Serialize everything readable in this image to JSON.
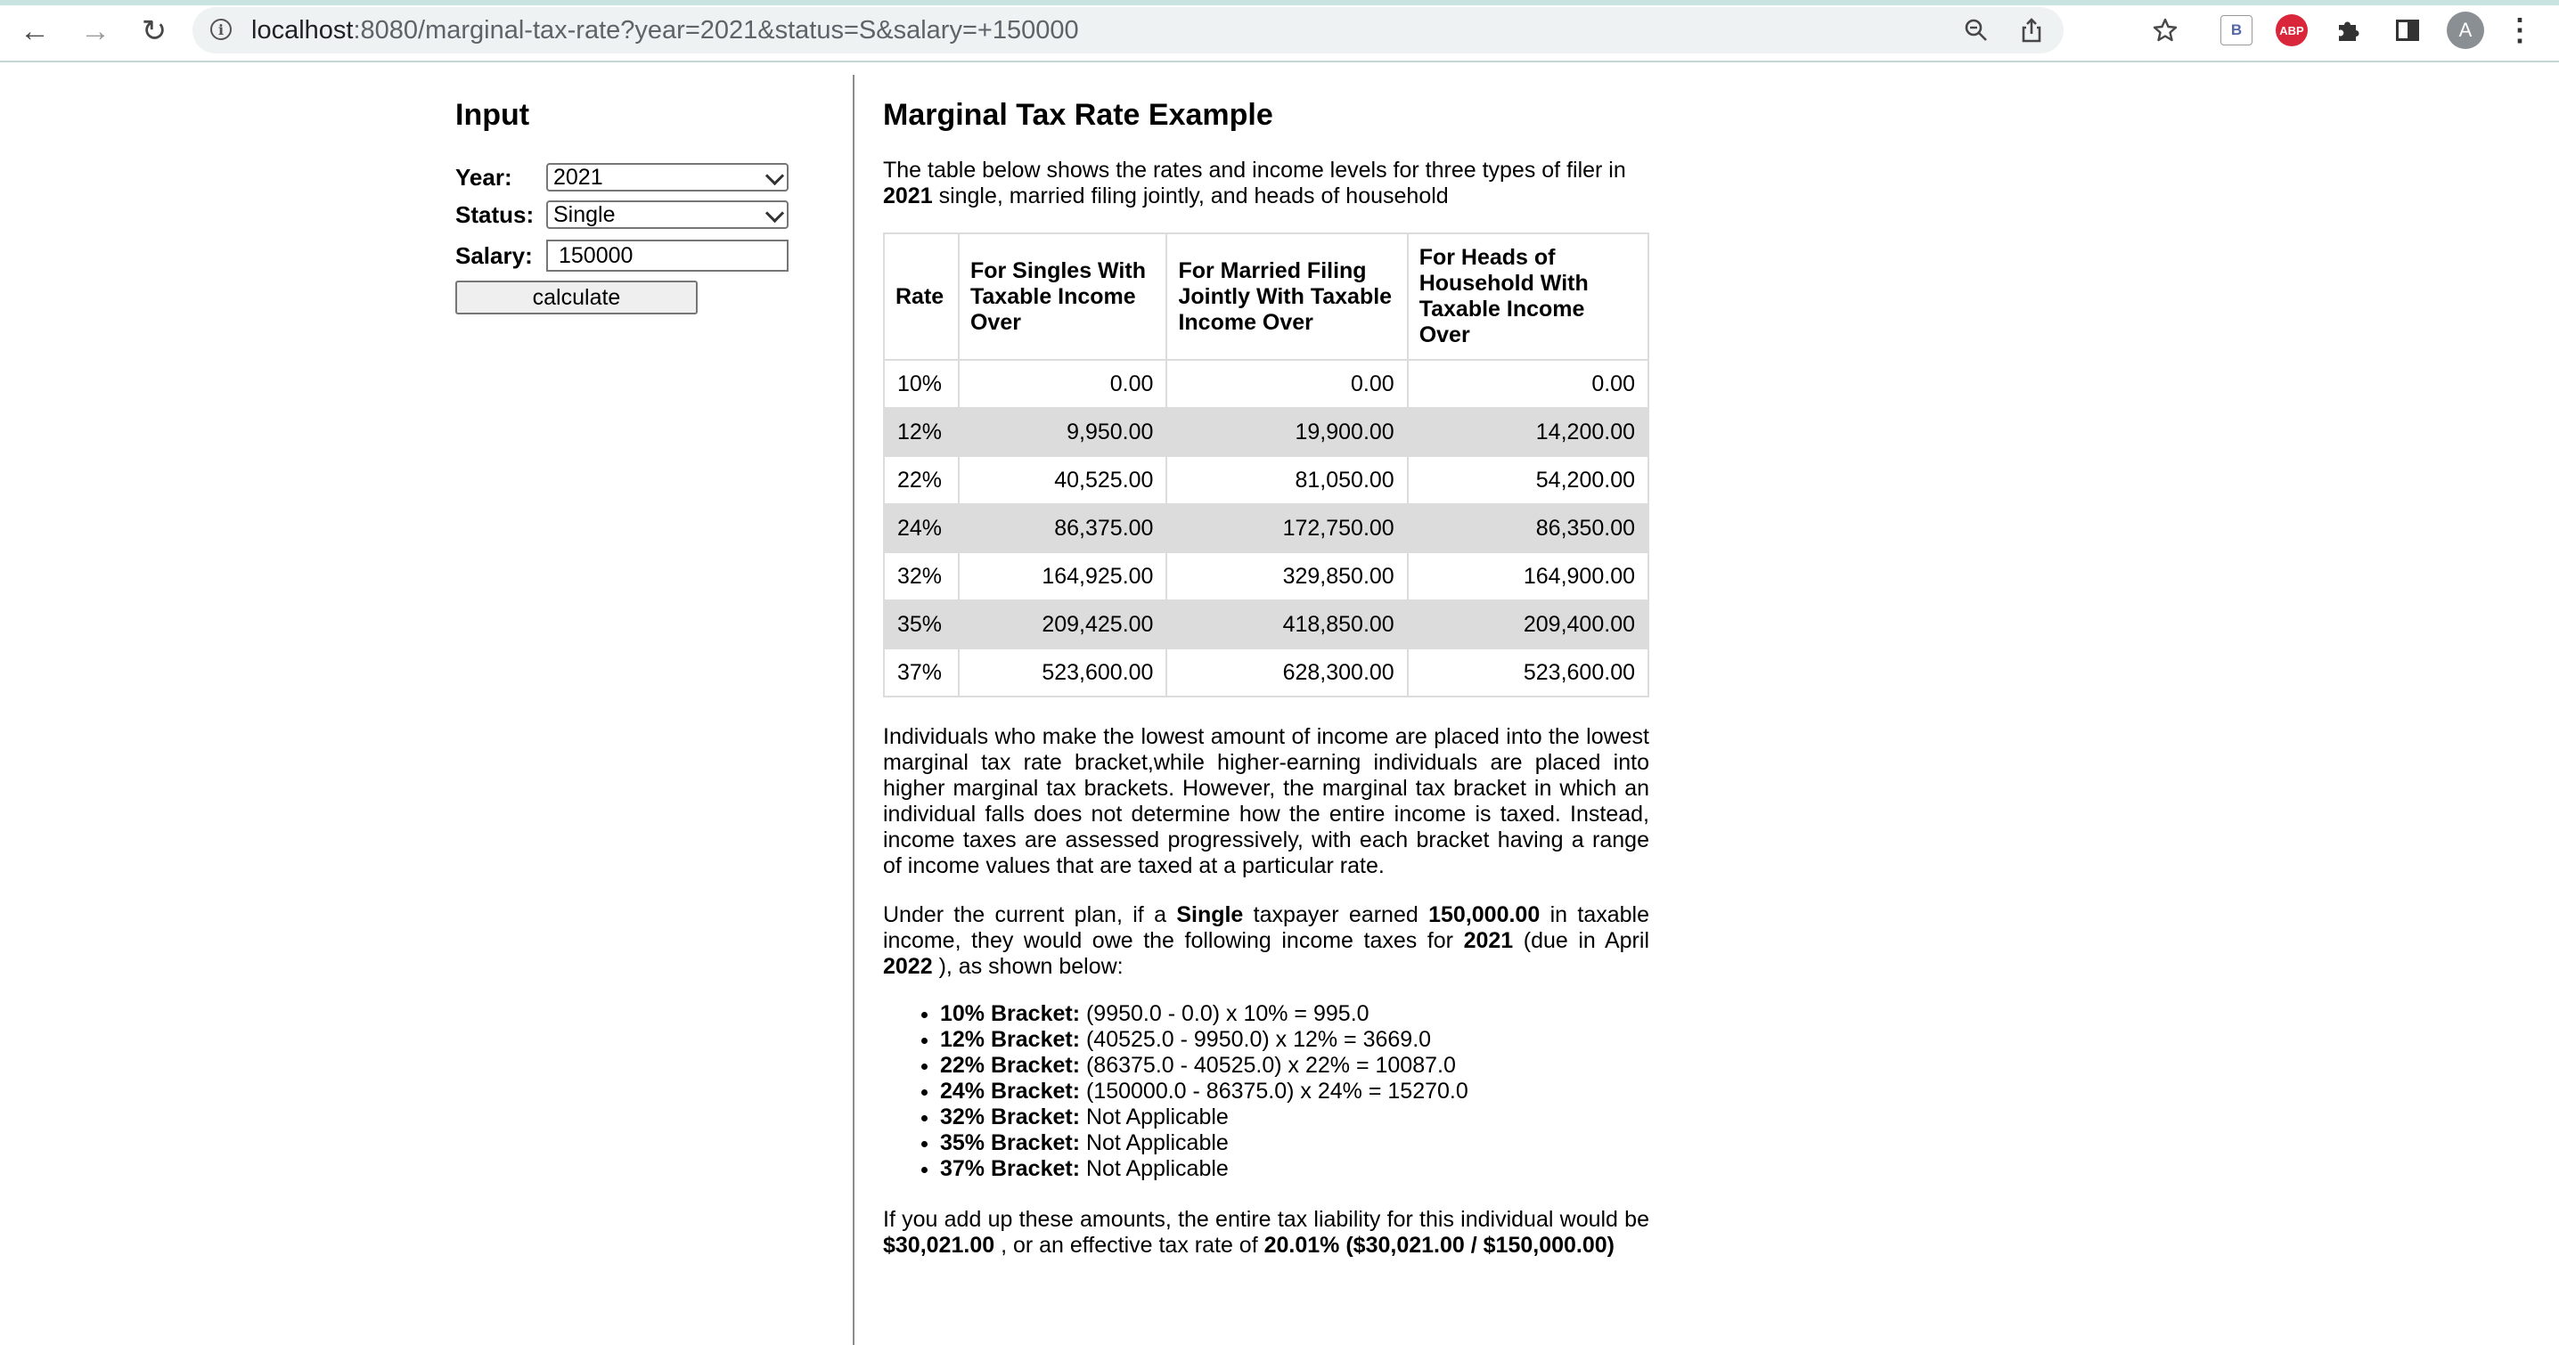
{
  "browser": {
    "url_host": "localhost",
    "url_rest": ":8080/marginal-tax-rate?year=2021&status=S&salary=+150000",
    "ext_b_label": "B",
    "ext_abp_label": "ABP",
    "avatar_letter": "A"
  },
  "input": {
    "heading": "Input",
    "year_label": "Year:",
    "year_value": "2021",
    "status_label": "Status:",
    "status_value": "Single",
    "salary_label": "Salary:",
    "salary_value": "150000",
    "calculate_label": "calculate"
  },
  "main": {
    "title": "Marginal Tax Rate Example",
    "intro_pre": "The table below shows the rates and income levels for three types of filer in ",
    "intro_year": "2021",
    "intro_post": " single, married filing jointly, and heads of household",
    "table": {
      "headers": [
        "Rate",
        "For Singles With Taxable Income Over",
        "For Married Filing Jointly With Taxable Income Over",
        "For Heads of Household With Taxable Income Over"
      ],
      "rows": [
        [
          "10%",
          "0.00",
          "0.00",
          "0.00"
        ],
        [
          "12%",
          "9,950.00",
          "19,900.00",
          "14,200.00"
        ],
        [
          "22%",
          "40,525.00",
          "81,050.00",
          "54,200.00"
        ],
        [
          "24%",
          "86,375.00",
          "172,750.00",
          "86,350.00"
        ],
        [
          "32%",
          "164,925.00",
          "329,850.00",
          "164,900.00"
        ],
        [
          "35%",
          "209,425.00",
          "418,850.00",
          "209,400.00"
        ],
        [
          "37%",
          "523,600.00",
          "628,300.00",
          "523,600.00"
        ]
      ]
    },
    "p2": "Individuals who make the lowest amount of income are placed into the lowest marginal tax rate bracket,while higher-earning individuals are placed into higher marginal tax brackets. However, the marginal tax bracket in which an individual falls does not determine how the entire income is taxed. Instead, income taxes are assessed progressively, with each bracket having a range of income values that are taxed at a particular rate.",
    "p3": {
      "t1": "Under the current plan, if a ",
      "status": "Single",
      "t2": " taxpayer earned ",
      "salary": "150,000.00",
      "t3": " in taxable income, they would owe the following income taxes for ",
      "year": "2021",
      "t4": " (due in April ",
      "due_year": "2022",
      "t5": " ), as shown below:"
    },
    "brackets": [
      {
        "label": "10% Bracket:",
        "text": " (9950.0 - 0.0) x 10% = 995.0"
      },
      {
        "label": "12% Bracket:",
        "text": " (40525.0 - 9950.0) x 12% = 3669.0"
      },
      {
        "label": "22% Bracket:",
        "text": " (86375.0 - 40525.0) x 22% = 10087.0"
      },
      {
        "label": "24% Bracket:",
        "text": " (150000.0 - 86375.0) x 24% = 15270.0"
      },
      {
        "label": "32% Bracket:",
        "text": " Not Applicable"
      },
      {
        "label": "35% Bracket:",
        "text": " Not Applicable"
      },
      {
        "label": "37% Bracket:",
        "text": " Not Applicable"
      }
    ],
    "p4": {
      "t1": "If you add up these amounts, the entire tax liability for this individual would be ",
      "total": "$30,021.00",
      "t2": " , or an effective tax rate of ",
      "rate": "20.01% ($30,021.00 / $150,000.00)"
    }
  }
}
